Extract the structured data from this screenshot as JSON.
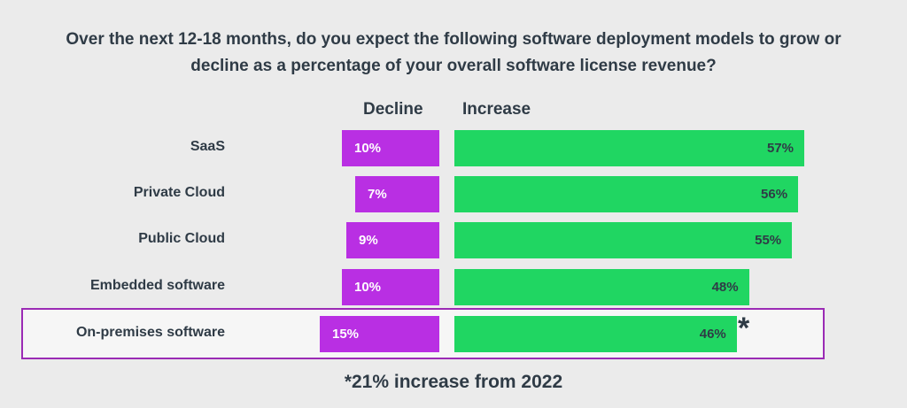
{
  "chart_data": {
    "type": "bar",
    "title": "Over the next 12-18 months, do you expect the following software deployment models to grow or decline as a percentage of your overall software license revenue?",
    "title_lines": [
      "Over the next 12-18 months, do you expect the following software deployment models to grow or",
      "decline as a percentage of your overall software license revenue?"
    ],
    "categories": [
      "SaaS",
      "Private Cloud",
      "Public Cloud",
      "Embedded software",
      "On-premises software"
    ],
    "series": [
      {
        "name": "Decline",
        "values": [
          10,
          7,
          9,
          10,
          15
        ],
        "color": "#b92fe3"
      },
      {
        "name": "Increase",
        "values": [
          57,
          56,
          55,
          48,
          46
        ],
        "color": "#20d662"
      }
    ],
    "highlighted_category": "On-premises software",
    "highlight_color": "#9b2bb5",
    "annotation_marker": "*",
    "footnote": "*21% increase from 2022"
  }
}
